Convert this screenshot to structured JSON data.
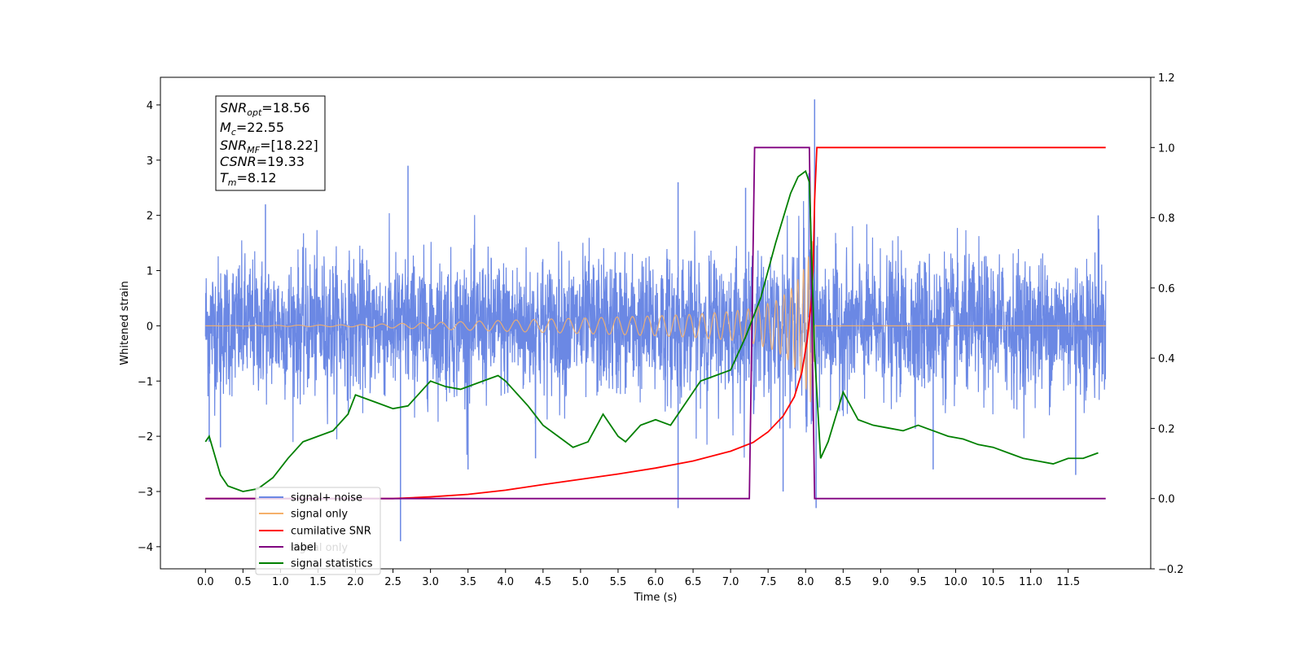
{
  "chart_data": {
    "type": "line",
    "xlabel": "Time (s)",
    "ylabel": "Whitened strain",
    "xlim": [
      -0.6,
      12.6
    ],
    "ylim": [
      -4.4,
      4.5
    ],
    "y2lim": [
      -0.2,
      1.2
    ],
    "x_ticks": [
      "0.0",
      "0.5",
      "1.0",
      "1.5",
      "2.0",
      "2.5",
      "3.0",
      "3.5",
      "4.0",
      "4.5",
      "5.0",
      "5.5",
      "6.0",
      "6.5",
      "7.0",
      "7.5",
      "8.0",
      "8.5",
      "9.0",
      "9.5",
      "10.0",
      "10.5",
      "11.0",
      "11.5"
    ],
    "y_ticks": [
      "−4",
      "−3",
      "−2",
      "−1",
      "0",
      "1",
      "2",
      "3",
      "4"
    ],
    "y2_ticks": [
      "−0.2",
      "0.0",
      "0.2",
      "0.4",
      "0.6",
      "0.8",
      "1.0",
      "1.2"
    ],
    "colors": {
      "noise": "#6b88e4",
      "signal": "#f5b06a",
      "snr": "#ff0000",
      "label": "#800080",
      "stats": "#008000"
    },
    "legend": {
      "placement": "lower-left",
      "entries": [
        "signal+ noise",
        "signal only",
        "cumilative SNR",
        "label",
        "signal statistics"
      ]
    },
    "ghost_text": "signal only",
    "info_box": {
      "lines": [
        {
          "main": "SNR",
          "sub": "opt",
          "rest": "=18.56"
        },
        {
          "main": "M",
          "sub": "c",
          "rest": "=22.55"
        },
        {
          "main": "SNR",
          "sub": "MF",
          "rest": "=[18.22]"
        },
        {
          "main": "CSNR",
          "sub": "",
          "rest": "=19.33"
        },
        {
          "main": "T",
          "sub": "m",
          "rest": "=8.12"
        }
      ]
    },
    "series": [
      {
        "name": "signal+ noise",
        "axis": "left",
        "description": "white noise band approx ±1.6 with spikes up to 2.9, max 4.1 at 8.12",
        "x_range": [
          0.0,
          12.0
        ],
        "band_upper": 1.6,
        "band_lower": -1.6,
        "spikes": [
          [
            0.05,
            -2.1
          ],
          [
            0.2,
            -2.2
          ],
          [
            0.8,
            2.2
          ],
          [
            2.6,
            -3.9
          ],
          [
            2.7,
            2.9
          ],
          [
            3.5,
            -2.6
          ],
          [
            4.4,
            -2.4
          ],
          [
            6.3,
            -3.3
          ],
          [
            6.3,
            2.6
          ],
          [
            7.2,
            2.5
          ],
          [
            7.7,
            -3.0
          ],
          [
            8.12,
            4.1
          ],
          [
            8.14,
            -3.3
          ],
          [
            9.7,
            -2.6
          ],
          [
            11.6,
            -2.7
          ],
          [
            11.9,
            2.0
          ]
        ]
      },
      {
        "name": "signal only",
        "axis": "left",
        "description": "chirp growing in amplitude up to merger at 8.12 s",
        "x": [
          0.0,
          2.0,
          3.0,
          4.0,
          5.0,
          6.0,
          6.5,
          7.0,
          7.3,
          7.6,
          7.8,
          7.95,
          8.05,
          8.1,
          8.12,
          12.0
        ],
        "amplitude": [
          0.0,
          0.02,
          0.06,
          0.1,
          0.14,
          0.18,
          0.21,
          0.26,
          0.32,
          0.45,
          0.65,
          0.95,
          1.3,
          1.6,
          0.0,
          0.0
        ]
      },
      {
        "name": "cumilative SNR",
        "axis": "right",
        "x": [
          0.0,
          2.0,
          2.5,
          3.0,
          3.5,
          4.0,
          4.5,
          5.0,
          5.5,
          6.0,
          6.5,
          7.0,
          7.3,
          7.5,
          7.7,
          7.85,
          7.95,
          8.02,
          8.07,
          8.1,
          8.12,
          8.15,
          12.0
        ],
        "values": [
          0.0,
          0.0,
          0.0,
          0.005,
          0.012,
          0.024,
          0.04,
          0.055,
          0.07,
          0.087,
          0.107,
          0.135,
          0.16,
          0.19,
          0.235,
          0.29,
          0.36,
          0.45,
          0.55,
          0.65,
          0.85,
          1.0,
          1.0
        ]
      },
      {
        "name": "label",
        "axis": "right",
        "x": [
          0.0,
          7.25,
          7.32,
          8.05,
          8.12,
          12.0
        ],
        "values": [
          0.0,
          0.0,
          1.0,
          1.0,
          0.0,
          0.0
        ]
      },
      {
        "name": "signal statistics",
        "axis": "left",
        "x": [
          0.0,
          0.05,
          0.2,
          0.3,
          0.5,
          0.7,
          0.9,
          1.1,
          1.3,
          1.5,
          1.7,
          1.9,
          2.0,
          2.1,
          2.3,
          2.5,
          2.7,
          2.9,
          3.0,
          3.2,
          3.4,
          3.6,
          3.8,
          3.9,
          4.0,
          4.1,
          4.3,
          4.5,
          4.7,
          4.9,
          5.0,
          5.1,
          5.3,
          5.5,
          5.6,
          5.8,
          6.0,
          6.2,
          6.4,
          6.6,
          6.8,
          7.0,
          7.2,
          7.4,
          7.6,
          7.8,
          7.9,
          8.0,
          8.05,
          8.12,
          8.2,
          8.3,
          8.5,
          8.7,
          8.9,
          9.1,
          9.3,
          9.5,
          9.7,
          9.9,
          10.1,
          10.3,
          10.5,
          10.7,
          10.9,
          11.1,
          11.3,
          11.5,
          11.7,
          11.9
        ],
        "values": [
          -2.1,
          -2.0,
          -2.7,
          -2.9,
          -3.0,
          -2.95,
          -2.75,
          -2.4,
          -2.1,
          -2.0,
          -1.9,
          -1.6,
          -1.25,
          -1.3,
          -1.4,
          -1.5,
          -1.45,
          -1.15,
          -1.0,
          -1.1,
          -1.15,
          -1.05,
          -0.95,
          -0.9,
          -1.0,
          -1.15,
          -1.45,
          -1.8,
          -2.0,
          -2.2,
          -2.15,
          -2.1,
          -1.6,
          -2.0,
          -2.1,
          -1.8,
          -1.7,
          -1.8,
          -1.4,
          -1.0,
          -0.9,
          -0.8,
          -0.2,
          0.5,
          1.5,
          2.4,
          2.7,
          2.8,
          2.6,
          -0.5,
          -2.4,
          -2.1,
          -1.2,
          -1.7,
          -1.8,
          -1.85,
          -1.9,
          -1.8,
          -1.9,
          -2.0,
          -2.05,
          -2.15,
          -2.2,
          -2.3,
          -2.4,
          -2.45,
          -2.5,
          -2.4,
          -2.4,
          -2.3
        ]
      }
    ]
  }
}
